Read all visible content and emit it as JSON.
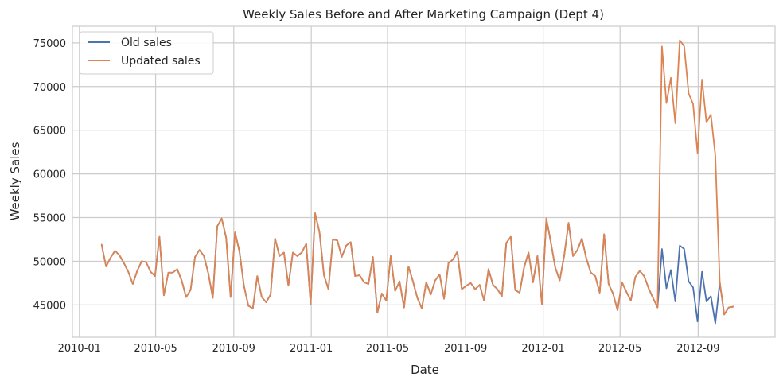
{
  "chart_data": {
    "type": "line",
    "title": "Weekly Sales Before and After Marketing Campaign (Dept 4)",
    "xlabel": "Date",
    "ylabel": "Weekly Sales",
    "x_tick_labels": [
      "2010-01",
      "2010-05",
      "2010-09",
      "2011-01",
      "2011-05",
      "2011-09",
      "2012-01",
      "2012-05",
      "2012-09"
    ],
    "x_ticks": [
      "2010-01-01",
      "2010-05-01",
      "2010-09-01",
      "2011-01-01",
      "2011-05-01",
      "2011-09-01",
      "2012-01-01",
      "2012-05-01",
      "2012-09-01"
    ],
    "y_ticks": [
      45000,
      50000,
      55000,
      60000,
      65000,
      70000,
      75000
    ],
    "y_tick_labels": [
      "45000",
      "50000",
      "55000",
      "60000",
      "65000",
      "70000",
      "75000"
    ],
    "xlim": [
      "2009-12-21",
      "2012-12-31"
    ],
    "ylim": [
      41300,
      76900
    ],
    "grid": true,
    "legend_position": "top-left",
    "dates": [
      "2010-02-05",
      "2010-02-12",
      "2010-02-19",
      "2010-02-26",
      "2010-03-05",
      "2010-03-12",
      "2010-03-19",
      "2010-03-26",
      "2010-04-02",
      "2010-04-09",
      "2010-04-16",
      "2010-04-23",
      "2010-04-30",
      "2010-05-07",
      "2010-05-14",
      "2010-05-21",
      "2010-05-28",
      "2010-06-04",
      "2010-06-11",
      "2010-06-18",
      "2010-06-25",
      "2010-07-02",
      "2010-07-09",
      "2010-07-16",
      "2010-07-23",
      "2010-07-30",
      "2010-08-06",
      "2010-08-13",
      "2010-08-20",
      "2010-08-27",
      "2010-09-03",
      "2010-09-10",
      "2010-09-17",
      "2010-09-24",
      "2010-10-01",
      "2010-10-08",
      "2010-10-15",
      "2010-10-22",
      "2010-10-29",
      "2010-11-05",
      "2010-11-12",
      "2010-11-19",
      "2010-11-26",
      "2010-12-03",
      "2010-12-10",
      "2010-12-17",
      "2010-12-24",
      "2010-12-31",
      "2011-01-07",
      "2011-01-14",
      "2011-01-21",
      "2011-01-28",
      "2011-02-04",
      "2011-02-11",
      "2011-02-18",
      "2011-02-25",
      "2011-03-04",
      "2011-03-11",
      "2011-03-18",
      "2011-03-25",
      "2011-04-01",
      "2011-04-08",
      "2011-04-15",
      "2011-04-22",
      "2011-04-29",
      "2011-05-06",
      "2011-05-13",
      "2011-05-20",
      "2011-05-27",
      "2011-06-03",
      "2011-06-10",
      "2011-06-17",
      "2011-06-24",
      "2011-07-01",
      "2011-07-08",
      "2011-07-15",
      "2011-07-22",
      "2011-07-29",
      "2011-08-05",
      "2011-08-12",
      "2011-08-19",
      "2011-08-26",
      "2011-09-02",
      "2011-09-09",
      "2011-09-16",
      "2011-09-23",
      "2011-09-30",
      "2011-10-07",
      "2011-10-14",
      "2011-10-21",
      "2011-10-28",
      "2011-11-04",
      "2011-11-11",
      "2011-11-18",
      "2011-11-25",
      "2011-12-02",
      "2011-12-09",
      "2011-12-16",
      "2011-12-23",
      "2011-12-30",
      "2012-01-06",
      "2012-01-13",
      "2012-01-20",
      "2012-01-27",
      "2012-02-03",
      "2012-02-10",
      "2012-02-17",
      "2012-02-24",
      "2012-03-02",
      "2012-03-09",
      "2012-03-16",
      "2012-03-23",
      "2012-03-30",
      "2012-04-06",
      "2012-04-13",
      "2012-04-20",
      "2012-04-27",
      "2012-05-04",
      "2012-05-11",
      "2012-05-18",
      "2012-05-25",
      "2012-06-01",
      "2012-06-08",
      "2012-06-15",
      "2012-06-22",
      "2012-06-29",
      "2012-07-06",
      "2012-07-13",
      "2012-07-20",
      "2012-07-27",
      "2012-08-03",
      "2012-08-10",
      "2012-08-17",
      "2012-08-24",
      "2012-08-31",
      "2012-09-07",
      "2012-09-14",
      "2012-09-21",
      "2012-09-28",
      "2012-10-05",
      "2012-10-12",
      "2012-10-19",
      "2012-10-26"
    ],
    "series": [
      {
        "name": "Old sales",
        "color": "#4c72b0",
        "values": [
          51900,
          49400,
          50400,
          51200,
          50700,
          49800,
          48800,
          47400,
          48900,
          50000,
          49900,
          48800,
          48300,
          52800,
          46100,
          48700,
          48700,
          49100,
          47800,
          45900,
          46700,
          50500,
          51300,
          50600,
          48600,
          45800,
          54000,
          54900,
          52700,
          45900,
          53300,
          51100,
          47200,
          44900,
          44600,
          48300,
          45900,
          45300,
          46200,
          52600,
          50600,
          51000,
          47200,
          51000,
          50600,
          51000,
          52000,
          45100,
          55500,
          53300,
          48400,
          46800,
          52500,
          52400,
          50500,
          51800,
          52200,
          48300,
          48400,
          47600,
          47400,
          50500,
          44100,
          46300,
          45500,
          50600,
          46600,
          47700,
          44700,
          49400,
          47700,
          45800,
          44600,
          47600,
          46200,
          47800,
          48500,
          45700,
          49800,
          50200,
          51100,
          46800,
          47200,
          47500,
          46800,
          47300,
          45500,
          49100,
          47300,
          46800,
          46000,
          52100,
          52800,
          46700,
          46400,
          49300,
          51000,
          47600,
          50600,
          45100,
          54900,
          52200,
          49300,
          47800,
          50600,
          54400,
          50600,
          51300,
          52600,
          50300,
          48700,
          48300,
          46400,
          53100,
          47400,
          46300,
          44400,
          47600,
          46500,
          45500,
          48200,
          48900,
          48300,
          46900,
          45800,
          44700,
          51400,
          46900,
          49000,
          45400,
          51800,
          51400,
          47700,
          47000,
          43100,
          48800,
          45400,
          46000,
          42900,
          47600,
          43900,
          44700,
          44800
        ]
      },
      {
        "name": "Updated sales",
        "color": "#dd8452",
        "values": [
          51900,
          49400,
          50400,
          51200,
          50700,
          49800,
          48800,
          47400,
          48900,
          50000,
          49900,
          48800,
          48300,
          52800,
          46100,
          48700,
          48700,
          49100,
          47800,
          45900,
          46700,
          50500,
          51300,
          50600,
          48600,
          45800,
          54000,
          54900,
          52700,
          45900,
          53300,
          51100,
          47200,
          44900,
          44600,
          48300,
          45900,
          45300,
          46200,
          52600,
          50600,
          51000,
          47200,
          51000,
          50600,
          51000,
          52000,
          45100,
          55500,
          53300,
          48400,
          46800,
          52500,
          52400,
          50500,
          51800,
          52200,
          48300,
          48400,
          47600,
          47400,
          50500,
          44100,
          46300,
          45500,
          50600,
          46600,
          47700,
          44700,
          49400,
          47700,
          45800,
          44600,
          47600,
          46200,
          47800,
          48500,
          45700,
          49800,
          50200,
          51100,
          46800,
          47200,
          47500,
          46800,
          47300,
          45500,
          49100,
          47300,
          46800,
          46000,
          52100,
          52800,
          46700,
          46400,
          49300,
          51000,
          47600,
          50600,
          45100,
          54900,
          52200,
          49300,
          47800,
          50600,
          54400,
          50600,
          51300,
          52600,
          50300,
          48700,
          48300,
          46400,
          53100,
          47400,
          46300,
          44400,
          47600,
          46500,
          45500,
          48200,
          48900,
          48300,
          46900,
          45800,
          44700,
          74600,
          68100,
          71000,
          65800,
          75300,
          74600,
          69200,
          68000,
          62400,
          70800,
          65900,
          66800,
          62100,
          47600,
          43900,
          44700,
          44800
        ]
      }
    ]
  }
}
